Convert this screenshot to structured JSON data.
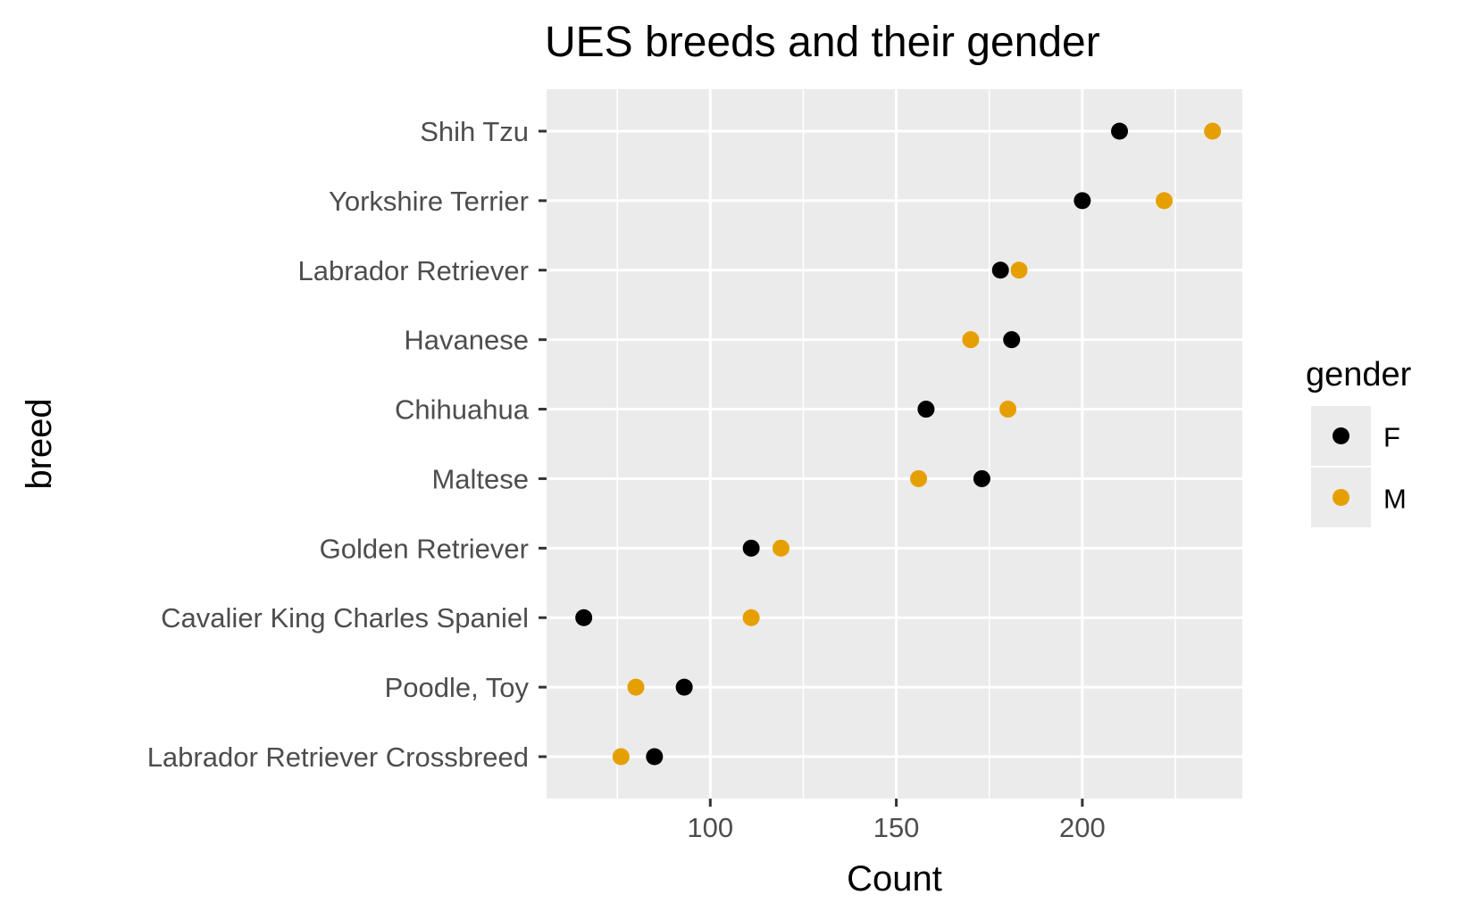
{
  "chart_data": {
    "type": "scatter",
    "title": "UES breeds and their gender",
    "xlabel": "Count",
    "ylabel": "breed",
    "xlim": [
      56,
      243
    ],
    "x_ticks": [
      100,
      150,
      200
    ],
    "grid": true,
    "categories": [
      "Labrador Retriever Crossbreed",
      "Poodle, Toy",
      "Cavalier King Charles Spaniel",
      "Golden Retriever",
      "Maltese",
      "Chihuahua",
      "Havanese",
      "Labrador Retriever",
      "Yorkshire Terrier",
      "Shih Tzu"
    ],
    "series": [
      {
        "name": "F",
        "color": "#000000",
        "values": [
          85,
          93,
          66,
          111,
          173,
          158,
          181,
          178,
          200,
          210
        ]
      },
      {
        "name": "M",
        "color": "#E69F00",
        "values": [
          76,
          80,
          111,
          119,
          156,
          180,
          170,
          183,
          222,
          235
        ]
      }
    ],
    "legend": {
      "title": "gender",
      "placement": "right",
      "entries": [
        "F",
        "M"
      ]
    }
  }
}
